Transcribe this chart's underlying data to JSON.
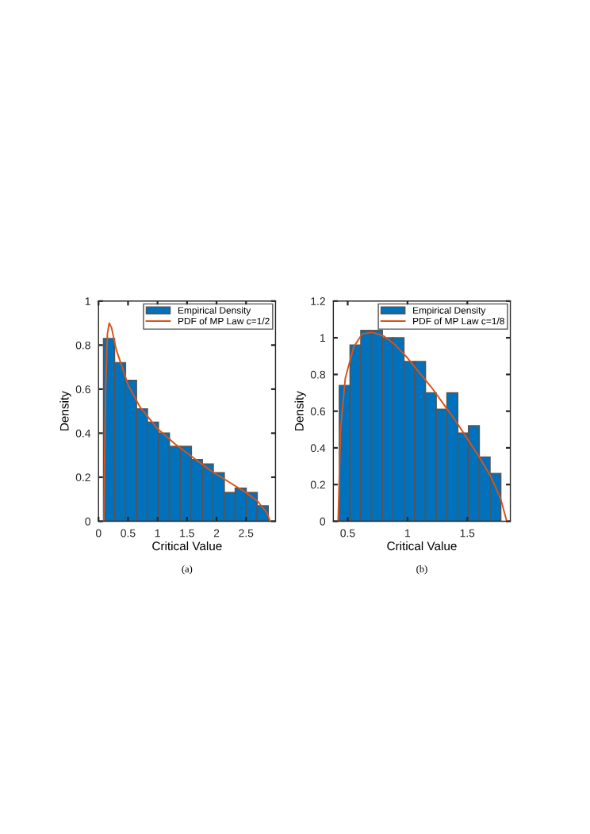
{
  "chart_data": [
    {
      "type": "histogram",
      "xlabel": "Critical Value",
      "ylabel": "Density",
      "annotations": [
        "(a)"
      ],
      "xlim": [
        0,
        3
      ],
      "xticks": [
        0,
        0.5,
        1,
        1.5,
        2,
        2.5
      ],
      "ylim": [
        0,
        1
      ],
      "yticks": [
        0,
        0.2,
        0.4,
        0.6,
        0.8,
        1
      ],
      "grid": false,
      "legend": "top right",
      "series": [
        {
          "name": "Empirical Density",
          "color": "#0072bd",
          "bins": [
            0.085,
            0.271,
            0.457,
            0.643,
            0.829,
            1.015,
            1.201,
            1.387,
            1.573,
            1.759,
            1.945,
            2.131,
            2.317,
            2.503,
            2.689,
            2.875
          ],
          "values": [
            0.83,
            0.72,
            0.64,
            0.51,
            0.45,
            0.4,
            0.34,
            0.34,
            0.28,
            0.26,
            0.22,
            0.13,
            0.15,
            0.13,
            0.07
          ]
        },
        {
          "name": "PDF of MP Law c=1/2",
          "type": "line",
          "color": "#d95319",
          "x": [
            0.09,
            0.12,
            0.15,
            0.18,
            0.22,
            0.3,
            0.4,
            0.5,
            0.7,
            1.0,
            1.3,
            1.6,
            1.9,
            2.2,
            2.5,
            2.7,
            2.85,
            2.91
          ],
          "values": [
            0.0,
            0.6,
            0.85,
            0.9,
            0.88,
            0.78,
            0.7,
            0.62,
            0.52,
            0.42,
            0.35,
            0.29,
            0.23,
            0.18,
            0.13,
            0.09,
            0.04,
            0.0
          ]
        }
      ]
    },
    {
      "type": "histogram",
      "xlabel": "Critical Value",
      "ylabel": "Density",
      "annotations": [
        "(b)"
      ],
      "xlim": [
        0.38,
        1.86
      ],
      "xticks": [
        0.5,
        1,
        1.5
      ],
      "ylim": [
        0,
        1.2
      ],
      "yticks": [
        0,
        0.2,
        0.4,
        0.6,
        0.8,
        1,
        1.2
      ],
      "grid": false,
      "legend": "top right",
      "series": [
        {
          "name": "Empirical Density",
          "color": "#0072bd",
          "bins": [
            0.43,
            0.52,
            0.61,
            0.7,
            0.79,
            0.88,
            0.97,
            1.06,
            1.15,
            1.24,
            1.33,
            1.42,
            1.51,
            1.6,
            1.69,
            1.78
          ],
          "values": [
            0.74,
            0.96,
            1.04,
            1.04,
            1.0,
            1.0,
            0.87,
            0.87,
            0.7,
            0.61,
            0.7,
            0.48,
            0.52,
            0.35,
            0.26
          ]
        },
        {
          "name": "PDF of MP Law c=1/8",
          "type": "line",
          "color": "#d95319",
          "x": [
            0.42,
            0.44,
            0.48,
            0.55,
            0.62,
            0.7,
            0.8,
            0.9,
            1.0,
            1.1,
            1.2,
            1.3,
            1.4,
            1.5,
            1.6,
            1.7,
            1.78,
            1.83
          ],
          "values": [
            0.0,
            0.5,
            0.78,
            0.95,
            1.02,
            1.03,
            1.01,
            0.96,
            0.89,
            0.81,
            0.73,
            0.64,
            0.55,
            0.45,
            0.35,
            0.24,
            0.12,
            0.0
          ]
        }
      ]
    }
  ]
}
